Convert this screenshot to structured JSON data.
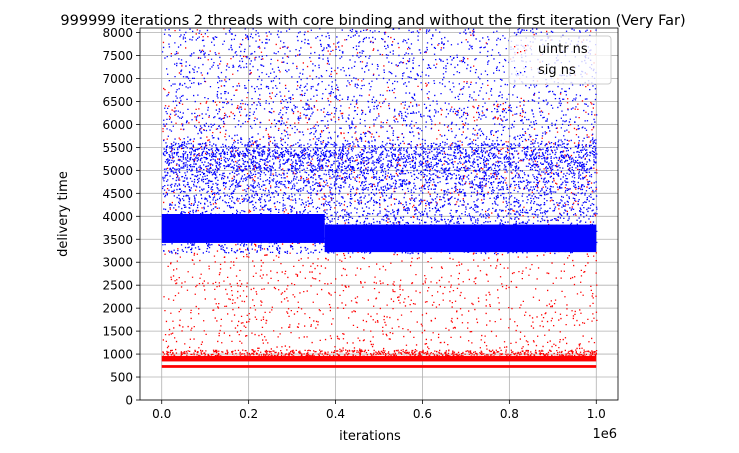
{
  "chart_data": {
    "type": "scatter",
    "title": "999999 iterations 2 threads with core binding and without the first iteration (Very Far)",
    "xlabel": "iterations",
    "ylabel": "delivery time",
    "x_offset_label": "1e6",
    "xlim": [
      -0.05,
      1.05
    ],
    "ylim": [
      0,
      8100
    ],
    "x_ticks": [
      0.0,
      0.2,
      0.4,
      0.6,
      0.8,
      1.0
    ],
    "x_tick_labels": [
      "0.0",
      "0.2",
      "0.4",
      "0.6",
      "0.8",
      "1.0"
    ],
    "y_ticks": [
      0,
      500,
      1000,
      1500,
      2000,
      2500,
      3000,
      3500,
      4000,
      4500,
      5000,
      5500,
      6000,
      6500,
      7000,
      7500,
      8000
    ],
    "y_tick_labels": [
      "0",
      "500",
      "1000",
      "1500",
      "2000",
      "2500",
      "3000",
      "3500",
      "4000",
      "4500",
      "5000",
      "5500",
      "6000",
      "6500",
      "7000",
      "7500",
      "8000"
    ],
    "grid": true,
    "legend_position": "top-right",
    "series": [
      {
        "name": "uintr ns",
        "color": "#ff0000",
        "bands": [
          {
            "x": [
              0.0,
              1.0
            ],
            "y": [
              700,
              760
            ]
          },
          {
            "x": [
              0.0,
              1.0
            ],
            "y": [
              840,
              960
            ]
          }
        ],
        "scatter_density": [
          {
            "y": [
              960,
              1100
            ],
            "n": 700
          },
          {
            "y": [
              1100,
              3300
            ],
            "n": 900
          },
          {
            "y": [
              3300,
              4100
            ],
            "n": 120
          },
          {
            "y": [
              4100,
              6600
            ],
            "n": 650
          },
          {
            "y": [
              6600,
              8100
            ],
            "n": 160
          }
        ]
      },
      {
        "name": "sig ns",
        "color": "#0000ff",
        "bands": [
          {
            "x": [
              0.0,
              0.375
            ],
            "y": [
              3420,
              4050
            ]
          },
          {
            "x": [
              0.375,
              1.0
            ],
            "y": [
              3220,
              3820
            ]
          }
        ],
        "scatter_density": [
          {
            "y": [
              3200,
              4200
            ],
            "n": 1800
          },
          {
            "y": [
              4200,
              4600
            ],
            "n": 700
          },
          {
            "y": [
              4600,
              5000
            ],
            "n": 1000
          },
          {
            "y": [
              5000,
              5600
            ],
            "n": 2200
          },
          {
            "y": [
              5600,
              6600
            ],
            "n": 900
          },
          {
            "y": [
              6600,
              8100
            ],
            "n": 1100
          }
        ]
      }
    ]
  }
}
